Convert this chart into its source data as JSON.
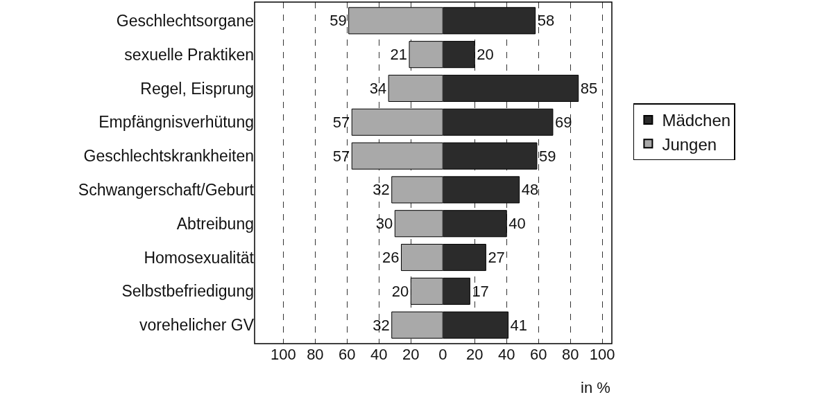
{
  "chart_data": [
    {
      "type": "bar",
      "orientation": "horizontal",
      "categories": [
        "Geschlechtsorgane",
        "sexuelle Praktiken",
        "Regel, Eisprung",
        "Empfängnisverhütung",
        "Geschlechtskrankheiten",
        "Schwangerschaft/Geburt",
        "Abtreibung",
        "Homosexualität",
        "Selbstbefriedigung",
        "vorehelicher GV"
      ],
      "series": [
        {
          "name": "Jungen",
          "color": "#a9a9a9",
          "values": [
            59,
            21,
            34,
            57,
            57,
            32,
            30,
            26,
            20,
            32
          ]
        }
      ],
      "xlim": [
        118,
        0
      ],
      "xticks": [
        100,
        80,
        60,
        40,
        20,
        0
      ],
      "data_labels": true,
      "grid": "x",
      "legend": "right"
    },
    {
      "type": "bar",
      "orientation": "horizontal",
      "xlabel": "in %",
      "categories": [
        "Geschlechtsorgane",
        "sexuelle Praktiken",
        "Regel, Eisprung",
        "Empfängnisverhütung",
        "Geschlechtskrankheiten",
        "Schwangerschaft/Geburt",
        "Abtreibung",
        "Homosexualität",
        "Selbstbefriedigung",
        "vorehelicher GV"
      ],
      "series": [
        {
          "name": "Mädchen",
          "color": "#2b2b2b",
          "values": [
            58,
            20,
            85,
            69,
            59,
            48,
            40,
            27,
            17,
            41
          ]
        }
      ],
      "xlim": [
        0,
        106
      ],
      "xticks": [
        20,
        40,
        60,
        80,
        100
      ],
      "data_labels": true,
      "grid": "x",
      "legend": "right",
      "tick_labels": "x"
    }
  ]
}
